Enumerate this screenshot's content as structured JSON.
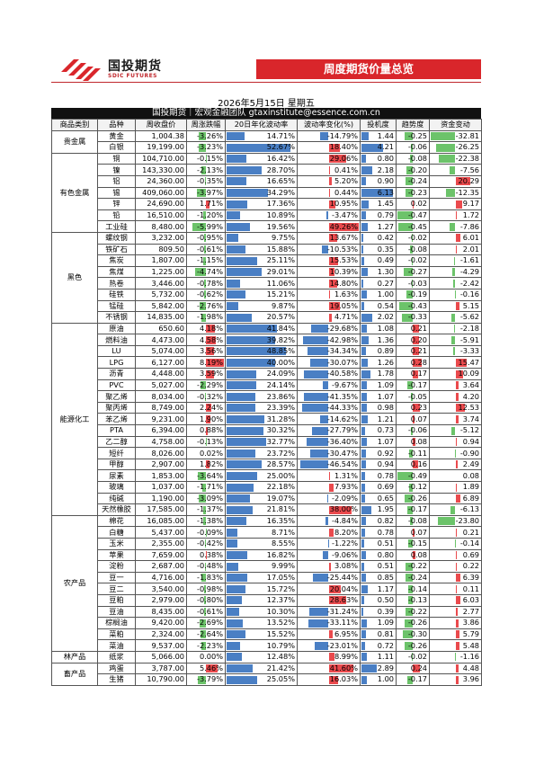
{
  "header": {
    "logo": "国投期货",
    "logo_en": "SDIC FUTURES",
    "banner": "周度期货价量总览",
    "date": "2026年5月15日 星期五",
    "team": "国投期货｜宏观金融团队 gtaxinstitute@essence.com.cn"
  },
  "table": {
    "columns": [
      "商品类别",
      "品种",
      "周收盘价",
      "周涨跌幅",
      "20日年化波动率",
      "波动率变化(%)",
      "投机度",
      "趋势度",
      "资金变动"
    ],
    "groups": [
      {
        "category": "贵金属",
        "rows": [
          [
            "黄金",
            "1,004.38",
            "-3.26%",
            "14.71%",
            "-14.79%",
            "1.44",
            "-0.25",
            "-32.81"
          ],
          [
            "白银",
            "19,199.00",
            "-3.23%",
            "52.67%",
            "18.40%",
            "4.21",
            "-0.06",
            "-26.25"
          ]
        ]
      },
      {
        "category": "有色金属",
        "rows": [
          [
            "铜",
            "104,710.00",
            "-0.15%",
            "16.42%",
            "29.06%",
            "0.80",
            "-0.08",
            "-22.38"
          ],
          [
            "镍",
            "143,330.00",
            "-2.13%",
            "28.70%",
            "0.41%",
            "2.18",
            "-0.20",
            "-7.56"
          ],
          [
            "铝",
            "24,360.00",
            "-0.35%",
            "16.65%",
            "5.20%",
            "0.90",
            "-0.24",
            "20.29"
          ],
          [
            "锡",
            "409,060.00",
            "-3.97%",
            "34.29%",
            "0.44%",
            "6.13",
            "-0.23",
            "-12.35"
          ],
          [
            "锌",
            "24,690.00",
            "1.71%",
            "17.36%",
            "10.95%",
            "1.45",
            "0.02",
            "9.17"
          ],
          [
            "铅",
            "16,510.00",
            "-1.20%",
            "10.89%",
            "-3.47%",
            "0.79",
            "-0.47",
            "1.72"
          ],
          [
            "工业硅",
            "8,480.00",
            "-5.99%",
            "19.56%",
            "49.26%",
            "1.27",
            "-0.45",
            "-7.86"
          ]
        ]
      },
      {
        "category": "黑色",
        "rows": [
          [
            "螺纹钢",
            "3,232.00",
            "-0.95%",
            "9.75%",
            "13.67%",
            "0.42",
            "-0.02",
            "6.01"
          ],
          [
            "铁矿石",
            "809.50",
            "-0.61%",
            "15.88%",
            "-10.53%",
            "0.35",
            "-0.08",
            "2.01"
          ],
          [
            "焦炭",
            "1,807.00",
            "-1.15%",
            "25.11%",
            "15.53%",
            "0.49",
            "-0.02",
            "-1.61"
          ],
          [
            "焦煤",
            "1,225.00",
            "-4.74%",
            "29.01%",
            "10.39%",
            "1.30",
            "-0.27",
            "-4.29"
          ],
          [
            "热卷",
            "3,446.00",
            "-0.78%",
            "11.06%",
            "14.80%",
            "0.27",
            "-0.03",
            "-2.42"
          ],
          [
            "硅铁",
            "5,732.00",
            "-0.62%",
            "15.21%",
            "1.63%",
            "1.00",
            "-0.19",
            "-0.16"
          ],
          [
            "锰硅",
            "5,842.00",
            "-2.76%",
            "9.87%",
            "19.05%",
            "0.54",
            "-0.43",
            "5.15"
          ],
          [
            "不锈钢",
            "14,835.00",
            "-1.98%",
            "20.57%",
            "4.71%",
            "2.02",
            "-0.33",
            "-5.62"
          ]
        ]
      },
      {
        "category": "能源化工",
        "rows": [
          [
            "原油",
            "650.60",
            "4.18%",
            "41.84%",
            "-29.68%",
            "1.08",
            "0.21",
            "-2.18"
          ],
          [
            "燃料油",
            "4,473.00",
            "4.58%",
            "39.82%",
            "-42.98%",
            "1.36",
            "0.20",
            "-5.91"
          ],
          [
            "LU",
            "5,074.00",
            "3.56%",
            "48.85%",
            "-34.34%",
            "0.89",
            "0.21",
            "-3.33"
          ],
          [
            "LPG",
            "6,127.00",
            "8.19%",
            "40.00%",
            "-30.07%",
            "1.26",
            "0.28",
            "15.47"
          ],
          [
            "沥青",
            "4,448.00",
            "3.59%",
            "24.09%",
            "-40.58%",
            "1.78",
            "0.17",
            "10.09"
          ],
          [
            "PVC",
            "5,027.00",
            "-2.29%",
            "24.14%",
            "-9.67%",
            "1.09",
            "-0.17",
            "3.64"
          ],
          [
            "聚乙烯",
            "8,034.00",
            "-0.32%",
            "23.86%",
            "-41.35%",
            "1.07",
            "-0.05",
            "4.20"
          ],
          [
            "聚丙烯",
            "8,749.00",
            "2.24%",
            "23.39%",
            "-44.33%",
            "0.98",
            "0.23",
            "12.53"
          ],
          [
            "苯乙烯",
            "9,231.00",
            "1.90%",
            "31.28%",
            "-14.62%",
            "1.21",
            "0.07",
            "3.74"
          ],
          [
            "PTA",
            "6,394.00",
            "0.88%",
            "30.32%",
            "-27.79%",
            "0.73",
            "-0.06",
            "-5.12"
          ],
          [
            "乙二醇",
            "4,758.00",
            "-0.13%",
            "32.77%",
            "-36.40%",
            "1.07",
            "0.08",
            "0.94"
          ],
          [
            "短纤",
            "8,026.00",
            "0.02%",
            "23.72%",
            "-30.47%",
            "0.92",
            "-0.11",
            "-0.90"
          ],
          [
            "甲醇",
            "2,907.00",
            "1.82%",
            "28.57%",
            "-46.54%",
            "0.94",
            "0.16",
            "2.49"
          ],
          [
            "尿素",
            "1,853.00",
            "-3.64%",
            "25.00%",
            "1.31%",
            "0.78",
            "-0.49",
            "0.08"
          ],
          [
            "玻璃",
            "1,037.00",
            "-1.71%",
            "22.18%",
            "7.93%",
            "0.69",
            "-0.12",
            "1.89"
          ],
          [
            "纯碱",
            "1,190.00",
            "-3.09%",
            "19.07%",
            "-2.09%",
            "0.65",
            "-0.26",
            "6.89"
          ],
          [
            "天然橡胶",
            "17,585.00",
            "-1.37%",
            "21.81%",
            "38.00%",
            "1.95",
            "-0.17",
            "-6.13"
          ]
        ]
      },
      {
        "category": "农产品",
        "rows": [
          [
            "棉花",
            "16,085.00",
            "-1.38%",
            "16.35%",
            "-4.84%",
            "0.82",
            "-0.08",
            "-23.80"
          ],
          [
            "白糖",
            "5,437.00",
            "-0.09%",
            "8.71%",
            "8.20%",
            "0.78",
            "0.07",
            "0.21"
          ],
          [
            "玉米",
            "2,355.00",
            "-0.42%",
            "8.55%",
            "-1.22%",
            "0.51",
            "-0.15",
            "-0.14"
          ],
          [
            "苹果",
            "7,659.00",
            "0.38%",
            "16.82%",
            "-9.06%",
            "0.80",
            "0.08",
            "0.69"
          ],
          [
            "淀粉",
            "2,687.00",
            "-0.48%",
            "9.99%",
            "3.08%",
            "0.51",
            "-0.22",
            "0.22"
          ],
          [
            "豆一",
            "4,716.00",
            "-1.83%",
            "17.05%",
            "-25.44%",
            "0.85",
            "-0.24",
            "6.39"
          ],
          [
            "豆二",
            "3,540.00",
            "-0.98%",
            "15.72%",
            "20.04%",
            "1.17",
            "-0.14",
            "0.11"
          ],
          [
            "豆粕",
            "2,979.00",
            "-0.80%",
            "12.37%",
            "28.63%",
            "0.50",
            "-0.13",
            "6.03"
          ],
          [
            "豆油",
            "8,435.00",
            "-0.61%",
            "10.30%",
            "-31.24%",
            "0.39",
            "-0.22",
            "2.77"
          ],
          [
            "棕榈油",
            "9,420.00",
            "-2.69%",
            "13.52%",
            "-33.11%",
            "1.09",
            "-0.26",
            "3.86"
          ],
          [
            "菜粕",
            "2,324.00",
            "-2.64%",
            "15.52%",
            "6.95%",
            "0.81",
            "-0.30",
            "5.79"
          ],
          [
            "菜油",
            "9,537.00",
            "-2.23%",
            "10.79%",
            "-23.01%",
            "0.72",
            "-0.26",
            "5.48"
          ]
        ]
      },
      {
        "category": "林产品",
        "rows": [
          [
            "纸浆",
            "5,066.00",
            "0.00%",
            "12.48%",
            "8.99%",
            "1.11",
            "-0.02",
            "-1.16"
          ]
        ]
      },
      {
        "category": "畜产品",
        "rows": [
          [
            "鸡蛋",
            "3,787.00",
            "5.46%",
            "21.42%",
            "41.60%",
            "2.89",
            "0.24",
            "4.48"
          ],
          [
            "生猪",
            "10,790.00",
            "-3.79%",
            "25.05%",
            "16.03%",
            "1.00",
            "-0.17",
            "3.96"
          ]
        ]
      }
    ]
  }
}
